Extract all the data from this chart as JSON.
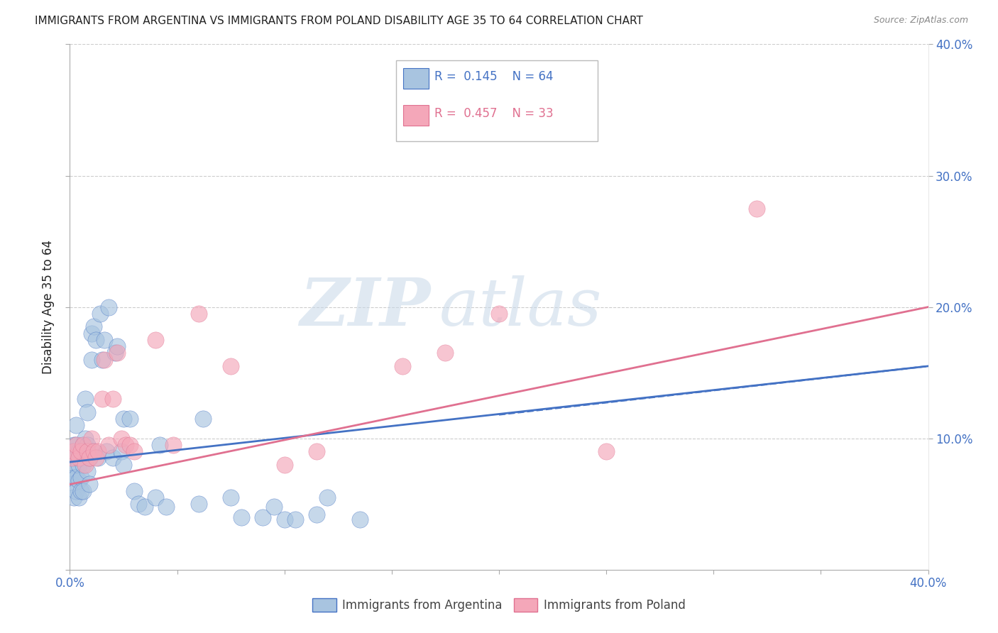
{
  "title": "IMMIGRANTS FROM ARGENTINA VS IMMIGRANTS FROM POLAND DISABILITY AGE 35 TO 64 CORRELATION CHART",
  "source": "Source: ZipAtlas.com",
  "ylabel": "Disability Age 35 to 64",
  "xlim": [
    0,
    0.4
  ],
  "ylim": [
    0,
    0.4
  ],
  "legend_r_argentina": "0.145",
  "legend_n_argentina": "64",
  "legend_r_poland": "0.457",
  "legend_n_poland": "33",
  "argentina_color": "#a8c4e0",
  "poland_color": "#f4a7b9",
  "argentina_line_color": "#4472c4",
  "poland_line_color": "#e07090",
  "watermark_zip": "ZIP",
  "watermark_atlas": "atlas",
  "argentina_x": [
    0.001,
    0.001,
    0.001,
    0.002,
    0.002,
    0.002,
    0.002,
    0.003,
    0.003,
    0.003,
    0.003,
    0.003,
    0.004,
    0.004,
    0.004,
    0.004,
    0.005,
    0.005,
    0.005,
    0.006,
    0.006,
    0.006,
    0.007,
    0.007,
    0.008,
    0.008,
    0.008,
    0.009,
    0.009,
    0.01,
    0.01,
    0.011,
    0.011,
    0.012,
    0.013,
    0.014,
    0.015,
    0.016,
    0.017,
    0.018,
    0.02,
    0.021,
    0.022,
    0.024,
    0.025,
    0.025,
    0.028,
    0.03,
    0.032,
    0.035,
    0.04,
    0.042,
    0.045,
    0.06,
    0.062,
    0.075,
    0.08,
    0.09,
    0.095,
    0.1,
    0.105,
    0.115,
    0.12,
    0.135
  ],
  "argentina_y": [
    0.09,
    0.075,
    0.065,
    0.095,
    0.08,
    0.07,
    0.055,
    0.11,
    0.095,
    0.085,
    0.07,
    0.06,
    0.09,
    0.08,
    0.068,
    0.055,
    0.085,
    0.07,
    0.06,
    0.095,
    0.08,
    0.06,
    0.13,
    0.1,
    0.12,
    0.095,
    0.075,
    0.085,
    0.065,
    0.18,
    0.16,
    0.185,
    0.09,
    0.175,
    0.085,
    0.195,
    0.16,
    0.175,
    0.09,
    0.2,
    0.085,
    0.165,
    0.17,
    0.09,
    0.115,
    0.08,
    0.115,
    0.06,
    0.05,
    0.048,
    0.055,
    0.095,
    0.048,
    0.05,
    0.115,
    0.055,
    0.04,
    0.04,
    0.048,
    0.038,
    0.038,
    0.042,
    0.055,
    0.038
  ],
  "poland_x": [
    0.001,
    0.002,
    0.003,
    0.004,
    0.005,
    0.006,
    0.007,
    0.008,
    0.009,
    0.01,
    0.011,
    0.012,
    0.013,
    0.015,
    0.016,
    0.018,
    0.02,
    0.022,
    0.024,
    0.026,
    0.028,
    0.03,
    0.04,
    0.048,
    0.06,
    0.075,
    0.1,
    0.115,
    0.155,
    0.175,
    0.2,
    0.25,
    0.32
  ],
  "poland_y": [
    0.085,
    0.09,
    0.095,
    0.085,
    0.09,
    0.095,
    0.08,
    0.09,
    0.085,
    0.1,
    0.09,
    0.085,
    0.09,
    0.13,
    0.16,
    0.095,
    0.13,
    0.165,
    0.1,
    0.095,
    0.095,
    0.09,
    0.175,
    0.095,
    0.195,
    0.155,
    0.08,
    0.09,
    0.155,
    0.165,
    0.195,
    0.09,
    0.275
  ],
  "argentina_trend_x": [
    0.0,
    0.4
  ],
  "argentina_trend_y": [
    0.082,
    0.155
  ],
  "poland_trend_x": [
    0.0,
    0.4
  ],
  "poland_trend_y": [
    0.065,
    0.2
  ],
  "background_color": "#ffffff",
  "grid_color": "#cccccc",
  "title_color": "#222222",
  "axis_label_color": "#222222",
  "right_axis_color": "#4472c4",
  "bottom_axis_color": "#4472c4"
}
